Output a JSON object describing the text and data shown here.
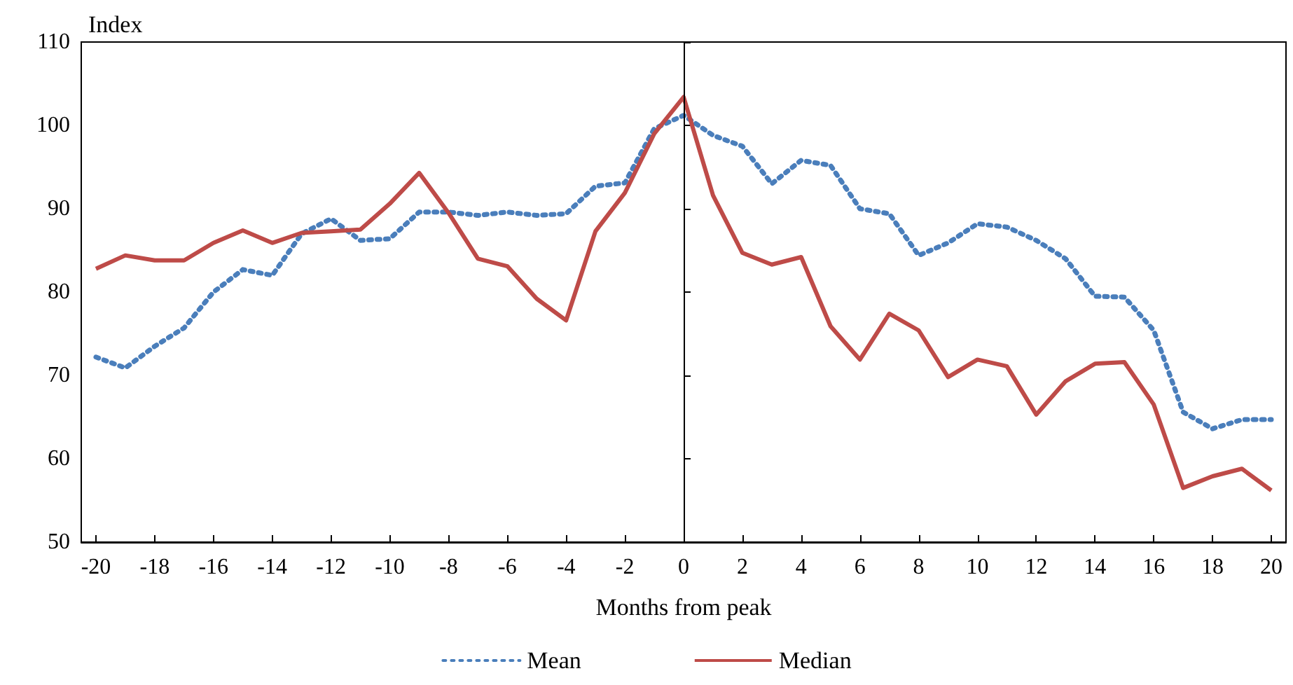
{
  "chart_data": {
    "type": "line",
    "xlabel": "Months from peak",
    "ylabel": "Index",
    "x": [
      -20,
      -19,
      -18,
      -17,
      -16,
      -15,
      -14,
      -13,
      -12,
      -11,
      -10,
      -9,
      -8,
      -7,
      -6,
      -5,
      -4,
      -3,
      -2,
      -1,
      0,
      1,
      2,
      3,
      4,
      5,
      6,
      7,
      8,
      9,
      10,
      11,
      12,
      13,
      14,
      15,
      16,
      17,
      18,
      19,
      20
    ],
    "series": [
      {
        "name": "Mean",
        "color": "#4a7ebb",
        "line_style": "dotted",
        "values": [
          72.2,
          70.9,
          73.5,
          75.7,
          80,
          82.7,
          82,
          87,
          88.8,
          86.2,
          86.4,
          89.6,
          89.6,
          89.2,
          89.6,
          89.2,
          89.4,
          92.7,
          93.1,
          99.6,
          101.2,
          98.8,
          97.5,
          93,
          95.8,
          95.2,
          90,
          89.4,
          84.4,
          85.9,
          88.2,
          87.8,
          86.2,
          84,
          79.5,
          79.4,
          75.4,
          65.6,
          63.6,
          64.7,
          64.7
        ]
      },
      {
        "name": "Median",
        "color": "#be4b48",
        "line_style": "solid",
        "values": [
          82.8,
          84.4,
          83.8,
          83.8,
          85.9,
          87.4,
          85.9,
          87.1,
          87.3,
          87.5,
          90.6,
          94.3,
          89.5,
          84,
          83.1,
          79.2,
          76.6,
          87.3,
          91.9,
          99,
          103.4,
          91.6,
          84.7,
          83.3,
          84.2,
          75.9,
          71.9,
          77.4,
          75.4,
          69.8,
          71.9,
          71.1,
          65.3,
          69.3,
          71.4,
          71.6,
          66.5,
          56.5,
          57.9,
          58.8,
          56.2
        ]
      }
    ],
    "xlim": [
      -20.5,
      20.5
    ],
    "xticks": [
      -20,
      -18,
      -16,
      -14,
      -12,
      -10,
      -8,
      -6,
      -4,
      -2,
      0,
      2,
      4,
      6,
      8,
      10,
      12,
      14,
      16,
      18,
      20
    ],
    "ylim": [
      50,
      110
    ],
    "yticks": [
      50,
      60,
      70,
      80,
      90,
      100,
      110
    ],
    "ref_lines": [
      {
        "axis": "x",
        "value": 0,
        "color": "#000000"
      }
    ],
    "grid": false,
    "legend": "bottom",
    "marker": "none"
  }
}
